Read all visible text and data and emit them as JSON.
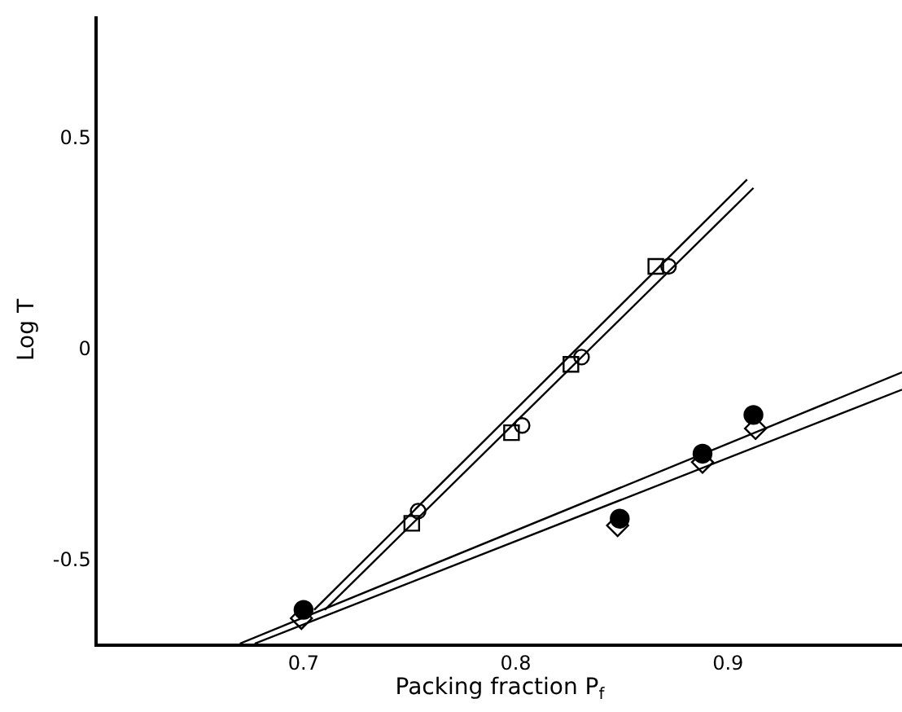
{
  "chart_data": {
    "type": "scatter",
    "xlabel": "Packing fraction P$_{f}$",
    "ylabel": "Log T",
    "xlim": [
      0.603,
      0.982
    ],
    "ylim": [
      -0.7,
      0.787
    ],
    "xticks": [
      0.7,
      0.8,
      0.9
    ],
    "yticks": [
      0.5,
      0,
      -0.5
    ],
    "series": [
      {
        "color": "#000000",
        "marker": "square",
        "x": [
          0.751,
          0.798,
          0.826,
          0.866
        ],
        "values": [
          -0.415,
          -0.2,
          -0.038,
          0.194
        ]
      },
      {
        "color": "#000000",
        "marker": "circle",
        "x": [
          0.754,
          0.803,
          0.831,
          0.872
        ],
        "values": [
          -0.386,
          -0.183,
          -0.021,
          0.194
        ]
      },
      {
        "color": "#000000",
        "marker": "diamond",
        "x": [
          0.699,
          0.848,
          0.888,
          0.913
        ],
        "values": [
          -0.64,
          -0.42,
          -0.27,
          -0.19
        ]
      },
      {
        "color": "#000000",
        "marker": "filled circle",
        "x": [
          0.7,
          0.849,
          0.888,
          0.912
        ],
        "values": [
          -0.62,
          -0.404,
          -0.25,
          -0.158
        ]
      },
      {
        "type": "line",
        "color": "#000000",
        "x": [
          0.705,
          0.909
        ],
        "values": [
          -0.62,
          0.4
        ]
      },
      {
        "type": "line",
        "color": "#000000",
        "x": [
          0.71,
          0.912
        ],
        "values": [
          -0.62,
          0.38
        ]
      },
      {
        "type": "line",
        "color": "#000000",
        "x": [
          0.67,
          0.982
        ],
        "values": [
          -0.7,
          -0.057
        ]
      },
      {
        "type": "line",
        "color": "#000000",
        "x": [
          0.677,
          0.982
        ],
        "values": [
          -0.7,
          -0.098
        ]
      }
    ]
  }
}
